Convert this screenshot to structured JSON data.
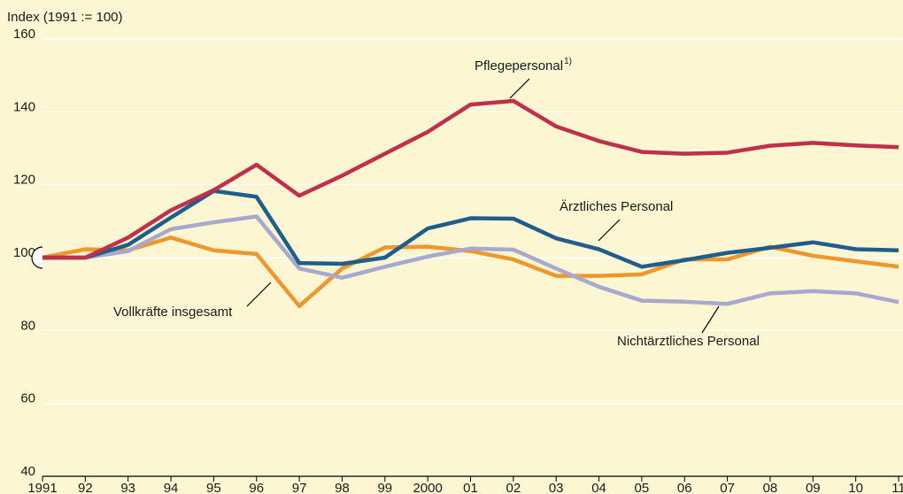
{
  "chart_data": {
    "type": "line",
    "ylabel": "Index (1991 := 100)",
    "categories": [
      "1991",
      "92",
      "93",
      "94",
      "95",
      "96",
      "97",
      "98",
      "99",
      "2000",
      "01",
      "02",
      "03",
      "04",
      "05",
      "06",
      "07",
      "08",
      "09",
      "10",
      "11"
    ],
    "ylim": [
      40,
      160
    ],
    "yticks": [
      40,
      60,
      80,
      100,
      120,
      140,
      160
    ],
    "grid": true,
    "series": [
      {
        "name": "Pflegepersonal",
        "footnote": "1)",
        "color": "#c0304a",
        "values": [
          100,
          100,
          105.5,
          113,
          118.5,
          125.5,
          117,
          122.5,
          128.5,
          134.5,
          142,
          143,
          136,
          132,
          129,
          128.5,
          128.8,
          130.7,
          131.5,
          130.8,
          130.3
        ]
      },
      {
        "name": "Ärztliches Personal",
        "color": "#1f5d8c",
        "values": [
          100,
          100,
          103.5,
          111,
          118.3,
          116.7,
          98.5,
          98.3,
          100,
          108,
          110.8,
          110.7,
          105.3,
          102.3,
          97.5,
          99.3,
          101.3,
          102.7,
          104.2,
          102.3,
          102
        ]
      },
      {
        "name": "Vollkräfte insgesamt",
        "color": "#f0962a",
        "values": [
          100,
          102.3,
          102,
          105.5,
          102,
          101,
          86.7,
          97,
          102.8,
          103,
          101.8,
          99.5,
          95,
          95,
          95.4,
          99.5,
          99.5,
          103,
          100.5,
          99,
          97.5
        ]
      },
      {
        "name": "Nichtärztliches Personal",
        "color": "#a7a9cf",
        "values": [
          100,
          100,
          101.8,
          107.8,
          109.7,
          111.3,
          97,
          94.5,
          97.5,
          100.3,
          102.5,
          102.2,
          97,
          92,
          88.2,
          87.9,
          87.3,
          90.2,
          90.8,
          90.2,
          87.8
        ]
      }
    ]
  }
}
